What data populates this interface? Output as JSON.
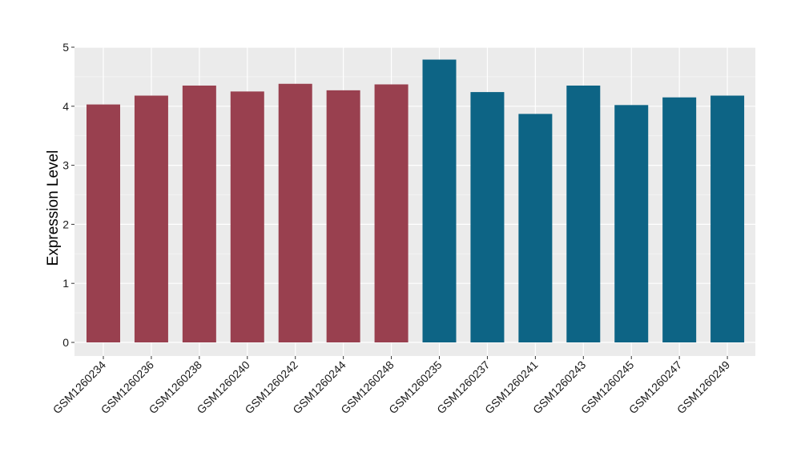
{
  "chart_data": {
    "type": "bar",
    "title": "",
    "xlabel": "",
    "ylabel": "Expression Level",
    "ylim": [
      0,
      5
    ],
    "yticks": [
      0,
      1,
      2,
      3,
      4,
      5
    ],
    "grid": true,
    "categories": [
      "GSM1260234",
      "GSM1260236",
      "GSM1260238",
      "GSM1260240",
      "GSM1260242",
      "GSM1260244",
      "GSM1260248",
      "GSM1260235",
      "GSM1260237",
      "GSM1260241",
      "GSM1260243",
      "GSM1260245",
      "GSM1260247",
      "GSM1260249"
    ],
    "values": [
      4.03,
      4.18,
      4.35,
      4.25,
      4.38,
      4.27,
      4.37,
      4.79,
      4.24,
      3.87,
      4.35,
      4.02,
      4.15,
      4.18
    ],
    "groups": [
      0,
      0,
      0,
      0,
      0,
      0,
      0,
      1,
      1,
      1,
      1,
      1,
      1,
      1
    ],
    "colors": {
      "group_0": "#99404f",
      "group_1": "#0d6485",
      "panel_background": "#ebebeb",
      "grid_major": "#ffffff",
      "grid_minor": "#f5f5f5"
    }
  }
}
